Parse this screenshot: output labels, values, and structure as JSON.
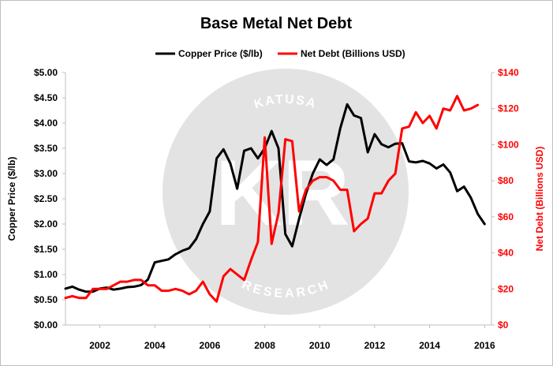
{
  "chart_data": {
    "type": "line",
    "title": "Base Metal Net Debt",
    "legend_position": "top",
    "grid": false,
    "x_ticks": [
      "2002",
      "2004",
      "2006",
      "2008",
      "2010",
      "2012",
      "2014",
      "2016"
    ],
    "y_left": {
      "label": "Copper Price ($/lb)",
      "range": [
        0,
        5
      ],
      "ticks": [
        "$0.00",
        "$0.50",
        "$1.00",
        "$1.50",
        "$2.00",
        "$2.50",
        "$3.00",
        "$3.50",
        "$4.00",
        "$4.50",
        "$5.00"
      ]
    },
    "y_right": {
      "label": "Net Debt (Billions USD)",
      "range": [
        0,
        140
      ],
      "ticks": [
        "$0",
        "$20",
        "$40",
        "$60",
        "$80",
        "$100",
        "$120",
        "$140"
      ]
    },
    "series": [
      {
        "name": "Copper Price ($/lb)",
        "color": "#000000",
        "axis": "left",
        "points": [
          [
            2000.75,
            0.72
          ],
          [
            2001.0,
            0.76
          ],
          [
            2001.25,
            0.7
          ],
          [
            2001.5,
            0.66
          ],
          [
            2001.75,
            0.66
          ],
          [
            2002.0,
            0.72
          ],
          [
            2002.25,
            0.74
          ],
          [
            2002.5,
            0.7
          ],
          [
            2002.75,
            0.72
          ],
          [
            2003.0,
            0.75
          ],
          [
            2003.25,
            0.76
          ],
          [
            2003.5,
            0.79
          ],
          [
            2003.75,
            0.9
          ],
          [
            2004.0,
            1.24
          ],
          [
            2004.25,
            1.27
          ],
          [
            2004.5,
            1.3
          ],
          [
            2004.75,
            1.4
          ],
          [
            2005.0,
            1.47
          ],
          [
            2005.25,
            1.52
          ],
          [
            2005.5,
            1.7
          ],
          [
            2005.75,
            2.0
          ],
          [
            2006.0,
            2.25
          ],
          [
            2006.25,
            3.3
          ],
          [
            2006.5,
            3.48
          ],
          [
            2006.75,
            3.2
          ],
          [
            2007.0,
            2.7
          ],
          [
            2007.25,
            3.45
          ],
          [
            2007.5,
            3.5
          ],
          [
            2007.75,
            3.3
          ],
          [
            2008.0,
            3.5
          ],
          [
            2008.25,
            3.84
          ],
          [
            2008.5,
            3.5
          ],
          [
            2008.75,
            1.8
          ],
          [
            2009.0,
            1.56
          ],
          [
            2009.25,
            2.1
          ],
          [
            2009.5,
            2.6
          ],
          [
            2009.75,
            3.0
          ],
          [
            2010.0,
            3.28
          ],
          [
            2010.25,
            3.17
          ],
          [
            2010.5,
            3.28
          ],
          [
            2010.75,
            3.9
          ],
          [
            2011.0,
            4.37
          ],
          [
            2011.25,
            4.15
          ],
          [
            2011.5,
            4.1
          ],
          [
            2011.75,
            3.42
          ],
          [
            2012.0,
            3.78
          ],
          [
            2012.25,
            3.58
          ],
          [
            2012.5,
            3.52
          ],
          [
            2012.75,
            3.59
          ],
          [
            2013.0,
            3.6
          ],
          [
            2013.25,
            3.24
          ],
          [
            2013.5,
            3.22
          ],
          [
            2013.75,
            3.25
          ],
          [
            2014.0,
            3.2
          ],
          [
            2014.25,
            3.1
          ],
          [
            2014.5,
            3.18
          ],
          [
            2014.75,
            3.02
          ],
          [
            2015.0,
            2.65
          ],
          [
            2015.25,
            2.74
          ],
          [
            2015.5,
            2.52
          ],
          [
            2015.75,
            2.2
          ],
          [
            2016.0,
            2.0
          ]
        ]
      },
      {
        "name": "Net Debt (Billions USD)",
        "color": "#ff0000",
        "axis": "right",
        "points": [
          [
            2000.75,
            15
          ],
          [
            2001.0,
            16
          ],
          [
            2001.25,
            15
          ],
          [
            2001.5,
            15
          ],
          [
            2001.75,
            20
          ],
          [
            2002.0,
            20
          ],
          [
            2002.25,
            20
          ],
          [
            2002.5,
            22
          ],
          [
            2002.75,
            24
          ],
          [
            2003.0,
            24
          ],
          [
            2003.25,
            25
          ],
          [
            2003.5,
            25
          ],
          [
            2003.75,
            22
          ],
          [
            2004.0,
            22
          ],
          [
            2004.25,
            19
          ],
          [
            2004.5,
            19
          ],
          [
            2004.75,
            20
          ],
          [
            2005.0,
            19
          ],
          [
            2005.25,
            17
          ],
          [
            2005.5,
            19
          ],
          [
            2005.75,
            24
          ],
          [
            2006.0,
            17
          ],
          [
            2006.25,
            13
          ],
          [
            2006.5,
            27
          ],
          [
            2006.75,
            31
          ],
          [
            2007.0,
            28
          ],
          [
            2007.25,
            25
          ],
          [
            2007.5,
            36
          ],
          [
            2007.75,
            46
          ],
          [
            2008.0,
            104
          ],
          [
            2008.25,
            45
          ],
          [
            2008.5,
            62
          ],
          [
            2008.75,
            103
          ],
          [
            2009.0,
            102
          ],
          [
            2009.25,
            63
          ],
          [
            2009.5,
            75
          ],
          [
            2009.75,
            80
          ],
          [
            2010.0,
            82
          ],
          [
            2010.25,
            82
          ],
          [
            2010.5,
            80
          ],
          [
            2010.75,
            75
          ],
          [
            2011.0,
            75
          ],
          [
            2011.25,
            52
          ],
          [
            2011.5,
            56
          ],
          [
            2011.75,
            59
          ],
          [
            2012.0,
            73
          ],
          [
            2012.25,
            73
          ],
          [
            2012.5,
            80
          ],
          [
            2012.75,
            84
          ],
          [
            2013.0,
            109
          ],
          [
            2013.25,
            110
          ],
          [
            2013.5,
            118
          ],
          [
            2013.75,
            112
          ],
          [
            2014.0,
            116
          ],
          [
            2014.25,
            109
          ],
          [
            2014.5,
            120
          ],
          [
            2014.75,
            119
          ],
          [
            2015.0,
            127
          ],
          [
            2015.25,
            119
          ],
          [
            2015.5,
            120
          ],
          [
            2015.75,
            122
          ]
        ]
      }
    ],
    "watermark": {
      "initials": "KR",
      "top_text": "KATUSA",
      "bottom_text": "RESEARCH",
      "color": "#e0e0e0"
    },
    "colors": {
      "left_axis": "#000000",
      "right_axis": "#ff0000",
      "axis_line": "#bfbfbf"
    }
  }
}
